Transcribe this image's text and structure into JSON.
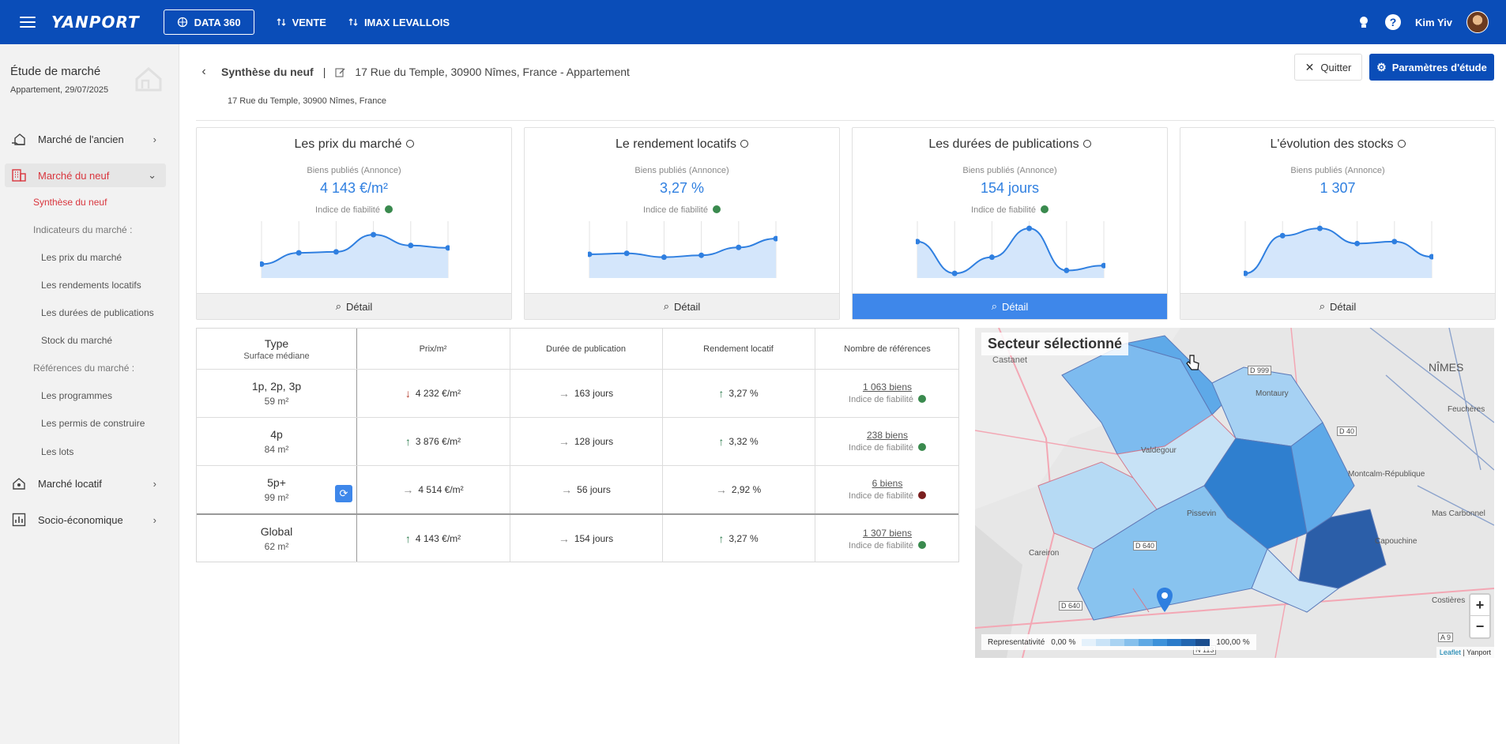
{
  "topbar": {
    "logo": "YANPORT",
    "data360": "DATA 360",
    "vente": "VENTE",
    "imax": "IMAX LEVALLOIS",
    "help": "?",
    "user": "Kim Yiv"
  },
  "sidebar": {
    "title": "Étude de marché",
    "subtitle": "Appartement, 29/07/2025",
    "sections": {
      "ancien": "Marché de l'ancien",
      "neuf": "Marché du neuf",
      "locatif": "Marché locatif",
      "socio": "Socio-économique"
    },
    "neuf_items": {
      "synthese": "Synthèse du neuf",
      "indicateurs": "Indicateurs du marché :",
      "prix": "Les prix du marché",
      "rendements": "Les rendements locatifs",
      "durees": "Les durées de publications",
      "stock": "Stock du marché",
      "references": "Références du marché :",
      "programmes": "Les programmes",
      "permis": "Les permis de construire",
      "lots": "Les lots"
    }
  },
  "header": {
    "title": "Synthèse du neuf",
    "separator": "|",
    "address": "17 Rue du Temple, 30900 Nîmes, France - Appartement",
    "address_sub": "17 Rue du Temple, 30900 Nîmes, France",
    "quit": "Quitter",
    "params": "Paramètres d'étude"
  },
  "cards": [
    {
      "title": "Les prix du marché",
      "pub": "Biens publiés (Annonce)",
      "value": "4 143 €/m²",
      "fiab": "Indice de fiabilité",
      "button": "Détail",
      "spark": [
        2.2,
        4.5,
        4.7,
        8.2,
        6.0,
        5.5
      ]
    },
    {
      "title": "Le rendement locatifs",
      "pub": "Biens publiés (Annonce)",
      "value": "3,27 %",
      "fiab": "Indice de fiabilité",
      "button": "Détail",
      "spark": [
        4.2,
        4.4,
        3.6,
        4.0,
        5.6,
        7.4
      ]
    },
    {
      "title": "Les durées de publications",
      "pub": "Biens publiés (Annonce)",
      "value": "154 jours",
      "fiab": "Indice de fiabilité",
      "button": "Détail",
      "spark": [
        6.8,
        0.3,
        3.6,
        9.5,
        0.9,
        1.9
      ]
    },
    {
      "title": "L'évolution des stocks",
      "pub": "Biens publiés (Annonce)",
      "value": "1 307",
      "fiab": "",
      "button": "Détail",
      "spark": [
        0.3,
        8.0,
        9.5,
        6.4,
        6.8,
        3.7
      ]
    }
  ],
  "table": {
    "headers": {
      "type": "Type",
      "type_sub": "Surface médiane",
      "prix": "Prix/m²",
      "duree": "Durée de publication",
      "rendement": "Rendement locatif",
      "nombre": "Nombre de références"
    },
    "fiab_label": "Indice de fiabilité",
    "rows": [
      {
        "type": "1p, 2p, 3p",
        "surface": "59 m²",
        "prix": "4 232 €/m²",
        "prix_trend": "down",
        "duree": "163 jours",
        "duree_trend": "flat",
        "rendement": "3,27 %",
        "rend_trend": "up",
        "refs": "1 063 biens",
        "fiab": "green"
      },
      {
        "type": "4p",
        "surface": "84 m²",
        "prix": "3 876 €/m²",
        "prix_trend": "up",
        "duree": "128 jours",
        "duree_trend": "flat",
        "rendement": "3,32 %",
        "rend_trend": "up",
        "refs": "238 biens",
        "fiab": "green"
      },
      {
        "type": "5p+",
        "surface": "99 m²",
        "prix": "4 514 €/m²",
        "prix_trend": "flat",
        "duree": "56 jours",
        "duree_trend": "flat",
        "rendement": "2,92 %",
        "rend_trend": "flat",
        "refs": "6 biens",
        "fiab": "red"
      },
      {
        "type": "Global",
        "surface": "62 m²",
        "prix": "4 143 €/m²",
        "prix_trend": "up",
        "duree": "154 jours",
        "duree_trend": "flat",
        "rendement": "3,27 %",
        "rend_trend": "up",
        "refs": "1 307 biens",
        "fiab": "green"
      }
    ]
  },
  "map": {
    "title": "Secteur sélectionné",
    "labels": {
      "castanet": "Castanet",
      "nimes": "NÎMES",
      "montaury": "Montaury",
      "valdegour": "Valdegour",
      "pissevin": "Pissevin",
      "careiron": "Careiron",
      "montcalm": "Montcalm-République",
      "mas_carbonnel": "Mas Carbonnel",
      "capouchine": "Capouchine",
      "costieres": "Costières",
      "feuchères": "Feuchères",
      "route1": "D 999",
      "route2": "D 40",
      "route3": "D 640",
      "route4": "D 640",
      "route5": "A 9",
      "route6": "N 113"
    },
    "zoom_in": "+",
    "zoom_out": "−",
    "legend_label": "Representativité",
    "legend_min": "0,00 %",
    "legend_max": "100,00 %",
    "legend_colors": [
      "#e4f1fb",
      "#c9e3f7",
      "#a9d3f2",
      "#86c0ec",
      "#5fa9e4",
      "#3d92da",
      "#2a7bc9",
      "#2266b0",
      "#1c4f8f"
    ],
    "attrib_leaflet": "Leaflet",
    "attrib_sep": "|",
    "attrib_yanport": "Yanport"
  }
}
